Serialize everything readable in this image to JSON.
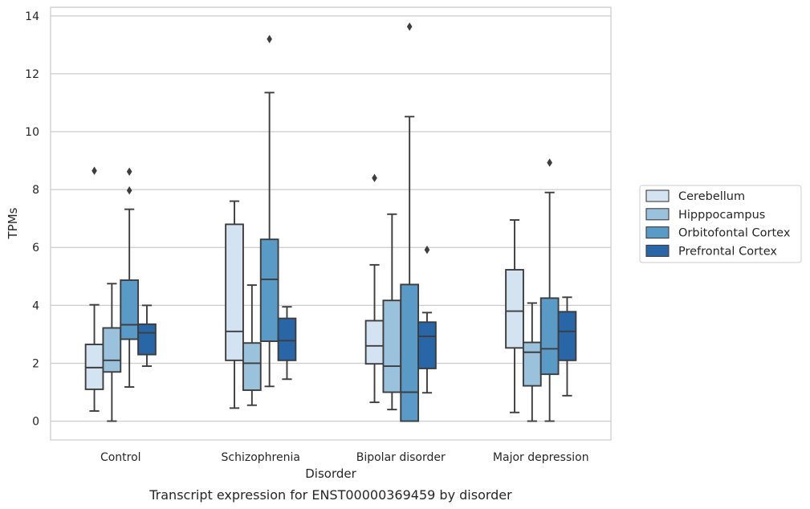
{
  "chart_data": {
    "type": "box",
    "title": "",
    "caption": "Transcript expression for ENST00000369459 by disorder",
    "xlabel": "Disorder",
    "ylabel": "TPMs",
    "ylim": [
      -0.65,
      14.3
    ],
    "yticks": [
      0,
      2,
      4,
      6,
      8,
      10,
      12,
      14
    ],
    "grid": "horizontal",
    "legend_position": "right",
    "categories": [
      "Control",
      "Schizophrenia",
      "Bipolar disorder",
      "Major depression"
    ],
    "series": [
      {
        "name": "Cerebellum",
        "color": "#d4e3f2",
        "boxes": [
          {
            "min": 0.35,
            "q1": 1.1,
            "median": 1.85,
            "q3": 2.65,
            "max": 4.02,
            "outliers": [
              8.65
            ]
          },
          {
            "min": 0.45,
            "q1": 2.1,
            "median": 3.1,
            "q3": 6.8,
            "max": 7.6,
            "outliers": []
          },
          {
            "min": 0.65,
            "q1": 1.98,
            "median": 2.6,
            "q3": 3.47,
            "max": 5.4,
            "outliers": [
              8.4
            ]
          },
          {
            "min": 0.3,
            "q1": 2.53,
            "median": 3.8,
            "q3": 5.23,
            "max": 6.95,
            "outliers": []
          }
        ]
      },
      {
        "name": "Hipppocampus",
        "color": "#9ac2dd",
        "boxes": [
          {
            "min": 0.0,
            "q1": 1.7,
            "median": 2.1,
            "q3": 3.22,
            "max": 4.75,
            "outliers": []
          },
          {
            "min": 0.55,
            "q1": 1.07,
            "median": 2.0,
            "q3": 2.7,
            "max": 4.7,
            "outliers": []
          },
          {
            "min": 0.4,
            "q1": 1.0,
            "median": 1.9,
            "q3": 4.17,
            "max": 7.15,
            "outliers": []
          },
          {
            "min": 0.0,
            "q1": 1.22,
            "median": 2.38,
            "q3": 2.72,
            "max": 4.08,
            "outliers": []
          }
        ]
      },
      {
        "name": "Orbitofontal Cortex",
        "color": "#5a9ac7",
        "boxes": [
          {
            "min": 1.18,
            "q1": 2.83,
            "median": 3.33,
            "q3": 4.87,
            "max": 7.32,
            "outliers": [
              7.97,
              8.62
            ]
          },
          {
            "min": 1.2,
            "q1": 2.76,
            "median": 4.9,
            "q3": 6.28,
            "max": 11.35,
            "outliers": [
              13.2
            ]
          },
          {
            "min": 0.0,
            "q1": 0.0,
            "median": 1.0,
            "q3": 4.72,
            "max": 10.52,
            "outliers": [
              13.63
            ]
          },
          {
            "min": 0.0,
            "q1": 1.62,
            "median": 2.5,
            "q3": 4.25,
            "max": 7.9,
            "outliers": [
              8.93
            ]
          }
        ]
      },
      {
        "name": "Prefrontal Cortex",
        "color": "#2866a8",
        "boxes": [
          {
            "min": 1.9,
            "q1": 2.3,
            "median": 3.05,
            "q3": 3.35,
            "max": 4.0,
            "outliers": []
          },
          {
            "min": 1.45,
            "q1": 2.1,
            "median": 2.78,
            "q3": 3.55,
            "max": 3.95,
            "outliers": []
          },
          {
            "min": 0.98,
            "q1": 1.82,
            "median": 2.93,
            "q3": 3.42,
            "max": 3.75,
            "outliers": [
              5.92
            ]
          },
          {
            "min": 0.88,
            "q1": 2.1,
            "median": 3.1,
            "q3": 3.78,
            "max": 4.28,
            "outliers": []
          }
        ]
      }
    ]
  }
}
